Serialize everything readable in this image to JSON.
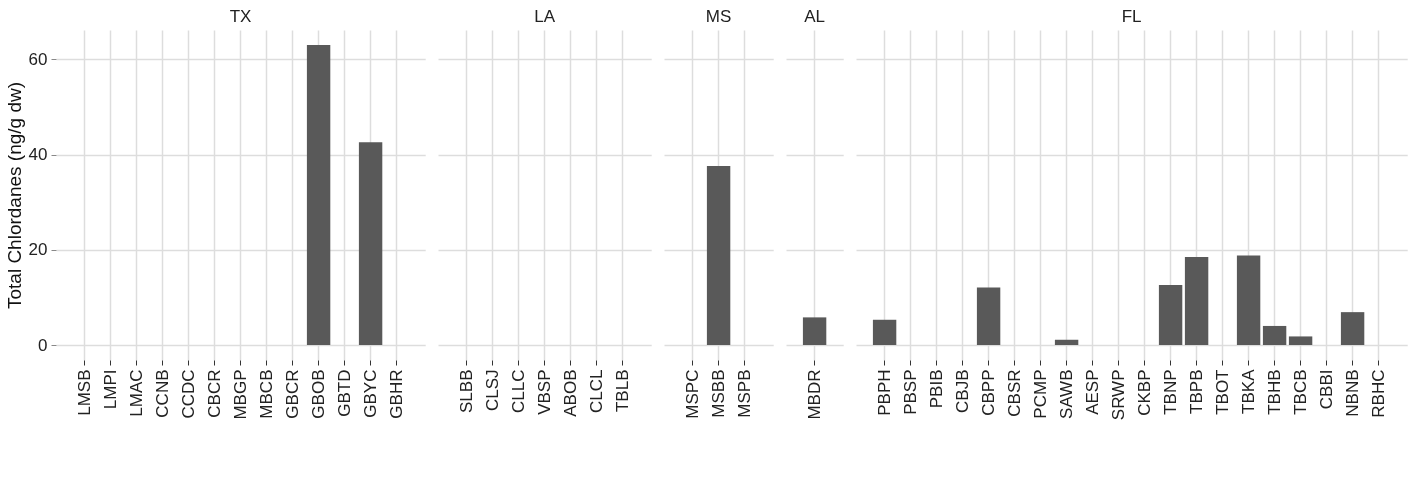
{
  "chart_data": [
    {
      "type": "bar",
      "title": "TX",
      "ylabel": "Total Chlordanes (ng/g dw)",
      "categories": [
        "LMSB",
        "LMPI",
        "LMAC",
        "CCNB",
        "CCDC",
        "CBCR",
        "MBGP",
        "MBCB",
        "GBCR",
        "GBOB",
        "GBTD",
        "GBYC",
        "GBHR"
      ],
      "values": [
        0,
        0,
        0,
        0,
        0,
        0,
        0,
        0,
        0,
        63.0,
        0,
        42.6,
        0
      ],
      "color": "#595959",
      "ylim": [
        -3.15,
        66.15
      ],
      "yticks": [
        0,
        20,
        40,
        60
      ],
      "grid": true
    },
    {
      "type": "bar",
      "title": "LA",
      "categories": [
        "SLBB",
        "CLSJ",
        "CLLC",
        "VBSP",
        "ABOB",
        "CLCL",
        "TBLB"
      ],
      "values": [
        0,
        0,
        0,
        0,
        0,
        0,
        0
      ],
      "color": "#595959",
      "ylim": [
        -3.15,
        66.15
      ],
      "yticks": [
        0,
        20,
        40,
        60
      ],
      "grid": true,
      "tick_labels": "x"
    },
    {
      "type": "bar",
      "title": "MS",
      "categories": [
        "MSPC",
        "MSBB",
        "MSPB"
      ],
      "values": [
        0,
        37.6,
        0
      ],
      "color": "#595959",
      "ylim": [
        -3.15,
        66.15
      ],
      "yticks": [
        0,
        20,
        40,
        60
      ],
      "grid": true,
      "tick_labels": "x"
    },
    {
      "type": "bar",
      "title": "AL",
      "categories": [
        "MBDR"
      ],
      "values": [
        5.8
      ],
      "color": "#595959",
      "ylim": [
        -3.15,
        66.15
      ],
      "yticks": [
        0,
        20,
        40,
        60
      ],
      "grid": true,
      "tick_labels": "x"
    },
    {
      "type": "bar",
      "title": "FL",
      "categories": [
        "PBPH",
        "PBSP",
        "PBIB",
        "CBJB",
        "CBPP",
        "CBSR",
        "PCMP",
        "SAWB",
        "AESP",
        "SRWP",
        "CKBP",
        "TBNP",
        "TBPB",
        "TBOT",
        "TBKA",
        "TBHB",
        "TBCB",
        "CBBI",
        "NBNB",
        "RBHC"
      ],
      "values": [
        5.3,
        0,
        0,
        0,
        12.1,
        0,
        0,
        1.1,
        0,
        0,
        0,
        12.6,
        18.5,
        0,
        18.8,
        4.0,
        1.8,
        0,
        6.9,
        0
      ],
      "color": "#595959",
      "ylim": [
        -3.15,
        66.15
      ],
      "yticks": [
        0,
        20,
        40,
        60
      ],
      "grid": true,
      "tick_labels": "x"
    }
  ]
}
